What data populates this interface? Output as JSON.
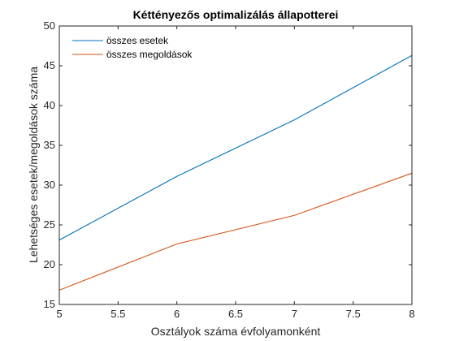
{
  "chart_data": {
    "type": "line",
    "title": "Kéttényezős optimalizálás állapotterei",
    "xlabel": "Osztályok száma évfolyamonként",
    "ylabel": "Lehetséges esetek/megoldások száma",
    "xlim": [
      5,
      8
    ],
    "ylim": [
      15,
      50
    ],
    "x_ticks": [
      "5",
      "5.5",
      "6",
      "6.5",
      "7",
      "7.5",
      "8"
    ],
    "y_ticks": [
      "15",
      "20",
      "25",
      "30",
      "35",
      "40",
      "45",
      "50"
    ],
    "grid": false,
    "legend_position": "top-left",
    "x": [
      5,
      6,
      7,
      8
    ],
    "series": [
      {
        "name": "összes esetek",
        "color": "#0072BD",
        "values": [
          23.1,
          31.1,
          38.2,
          46.3
        ]
      },
      {
        "name": "összes megoldások",
        "color": "#D95319",
        "values": [
          16.8,
          22.6,
          26.2,
          31.5
        ]
      }
    ]
  }
}
